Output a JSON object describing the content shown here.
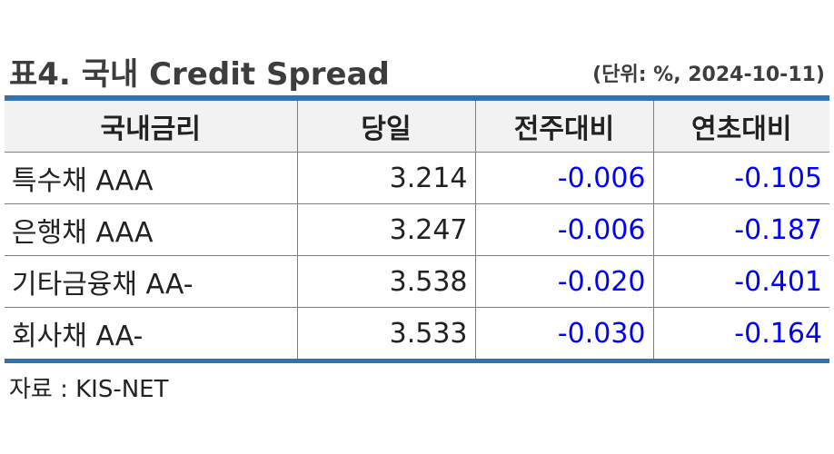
{
  "header": {
    "title": "표4. 국내 Credit Spread",
    "unit": "(단위: %, 2024-10-11)"
  },
  "table": {
    "columns": [
      "국내금리",
      "당일",
      "전주대비",
      "연초대비"
    ],
    "rows": [
      [
        "특수채 AAA",
        "3.214",
        "-0.006",
        "-0.105"
      ],
      [
        "은행채 AAA",
        "3.247",
        "-0.006",
        "-0.187"
      ],
      [
        "기타금융채 AA-",
        "3.538",
        "-0.020",
        "-0.401"
      ],
      [
        "회사채 AA-",
        "3.533",
        "-0.030",
        "-0.164"
      ]
    ]
  },
  "footer": {
    "source": "자료 : KIS-NET"
  },
  "colors": {
    "accent_rule": "#2e74b5",
    "negative_value": "#0000ff",
    "header_bg": "#f2f2f2"
  }
}
